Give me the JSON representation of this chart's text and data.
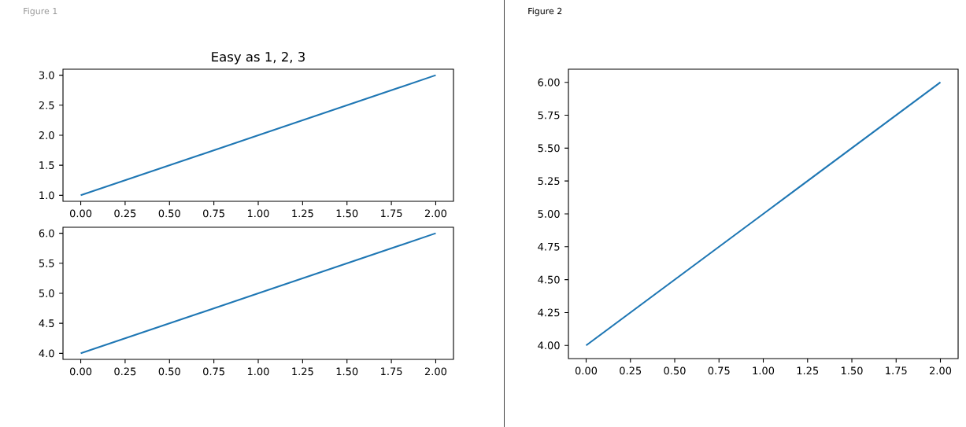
{
  "chart_data": [
    {
      "type": "line",
      "title": "Easy as 1, 2, 3",
      "annotations": [
        "Figure 1"
      ],
      "x": [
        0,
        1,
        2
      ],
      "values": [
        1,
        2,
        3
      ],
      "color": "#1f77b4",
      "xlim": [
        -0.1,
        2.1
      ],
      "ylim": [
        0.9,
        3.1
      ],
      "xticks": [
        {
          "value": 0,
          "label": "0.00"
        },
        {
          "value": 0.25,
          "label": "0.25"
        },
        {
          "value": 0.5,
          "label": "0.50"
        },
        {
          "value": 0.75,
          "label": "0.75"
        },
        {
          "value": 1,
          "label": "1.00"
        },
        {
          "value": 1.25,
          "label": "1.25"
        },
        {
          "value": 1.5,
          "label": "1.50"
        },
        {
          "value": 1.75,
          "label": "1.75"
        },
        {
          "value": 2,
          "label": "2.00"
        }
      ],
      "yticks": [
        {
          "value": 1,
          "label": "1.0"
        },
        1.5,
        {
          "value": 2,
          "label": "2.0"
        },
        2.5,
        {
          "value": 3,
          "label": "3.0"
        }
      ]
    },
    {
      "type": "line",
      "x": [
        0,
        1,
        2
      ],
      "values": [
        4,
        5,
        6
      ],
      "color": "#1f77b4",
      "xlim": [
        -0.1,
        2.1
      ],
      "ylim": [
        3.9,
        6.1
      ],
      "xticks": [
        {
          "value": 0,
          "label": "0.00"
        },
        {
          "value": 0.25,
          "label": "0.25"
        },
        {
          "value": 0.5,
          "label": "0.50"
        },
        {
          "value": 0.75,
          "label": "0.75"
        },
        {
          "value": 1,
          "label": "1.00"
        },
        {
          "value": 1.25,
          "label": "1.25"
        },
        {
          "value": 1.5,
          "label": "1.50"
        },
        {
          "value": 1.75,
          "label": "1.75"
        },
        {
          "value": 2,
          "label": "2.00"
        }
      ],
      "yticks": [
        {
          "value": 4,
          "label": "4.0"
        },
        4.5,
        {
          "value": 5,
          "label": "5.0"
        },
        5.5,
        {
          "value": 6,
          "label": "6.0"
        }
      ]
    },
    {
      "type": "line",
      "annotations": [
        "Figure 2"
      ],
      "x": [
        0,
        1,
        2
      ],
      "values": [
        4,
        5,
        6
      ],
      "color": "#1f77b4",
      "xlim": [
        -0.1,
        2.1
      ],
      "ylim": [
        3.9,
        6.1
      ],
      "xticks": [
        {
          "value": 0,
          "label": "0.00"
        },
        {
          "value": 0.25,
          "label": "0.25"
        },
        {
          "value": 0.5,
          "label": "0.50"
        },
        {
          "value": 0.75,
          "label": "0.75"
        },
        {
          "value": 1,
          "label": "1.00"
        },
        {
          "value": 1.25,
          "label": "1.25"
        },
        {
          "value": 1.5,
          "label": "1.50"
        },
        {
          "value": 1.75,
          "label": "1.75"
        },
        {
          "value": 2,
          "label": "2.00"
        }
      ],
      "yticks": [
        {
          "value": 4,
          "label": "4.00"
        },
        4.25,
        {
          "value": 4.5,
          "label": "4.50"
        },
        4.75,
        {
          "value": 5,
          "label": "5.00"
        },
        5.25,
        {
          "value": 5.5,
          "label": "5.50"
        },
        5.75,
        {
          "value": 6,
          "label": "6.00"
        }
      ]
    }
  ]
}
